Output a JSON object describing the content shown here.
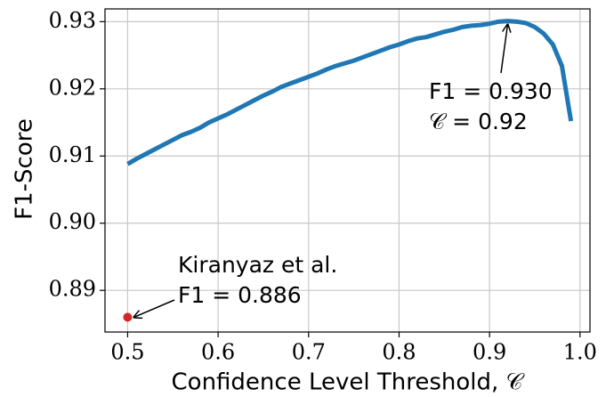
{
  "chart_data": {
    "type": "line",
    "x_label": "Confidence Level Threshold, 𝒞",
    "y_label": "F1-Score",
    "x": [
      0.5,
      0.51,
      0.52,
      0.53,
      0.54,
      0.55,
      0.56,
      0.57,
      0.58,
      0.59,
      0.6,
      0.61,
      0.62,
      0.63,
      0.64,
      0.65,
      0.66,
      0.67,
      0.68,
      0.69,
      0.7,
      0.71,
      0.72,
      0.73,
      0.74,
      0.75,
      0.76,
      0.77,
      0.78,
      0.79,
      0.8,
      0.81,
      0.82,
      0.83,
      0.84,
      0.85,
      0.86,
      0.87,
      0.88,
      0.89,
      0.9,
      0.91,
      0.92,
      0.93,
      0.94,
      0.95,
      0.96,
      0.97,
      0.98,
      0.99
    ],
    "values": [
      0.9088,
      0.9096,
      0.9103,
      0.911,
      0.9117,
      0.9124,
      0.9131,
      0.9136,
      0.9142,
      0.915,
      0.9156,
      0.9162,
      0.9169,
      0.9176,
      0.9183,
      0.919,
      0.9196,
      0.9203,
      0.9208,
      0.9213,
      0.9218,
      0.9223,
      0.9229,
      0.9234,
      0.9238,
      0.9242,
      0.9247,
      0.9252,
      0.9257,
      0.9262,
      0.9266,
      0.9271,
      0.9275,
      0.9277,
      0.9281,
      0.9285,
      0.9288,
      0.9292,
      0.9294,
      0.9295,
      0.9297,
      0.93,
      0.9301,
      0.93,
      0.9298,
      0.9292,
      0.9282,
      0.9266,
      0.9234,
      0.9152
    ],
    "color": "#1f77b4",
    "points": [
      {
        "x": 0.5,
        "y": 0.886,
        "color": "#d62728"
      }
    ],
    "annotations": [
      {
        "lines": [
          "F1 = 0.930",
          "𝒞 = 0.92"
        ]
      },
      {
        "lines": [
          "Kiranyaz et al.",
          "F1 = 0.886"
        ]
      }
    ],
    "xlim": [
      0.475,
      1.011
    ],
    "ylim": [
      0.8838,
      0.9319
    ],
    "xticks": [
      0.5,
      0.6,
      0.7,
      0.8,
      0.9,
      {
        "value": 1,
        "label": "1.0"
      }
    ],
    "yticks": [
      {
        "value": 0.89,
        "label": "0.89"
      },
      {
        "value": 0.9,
        "label": "0.90"
      },
      0.91,
      0.92,
      0.93
    ],
    "grid": true
  }
}
